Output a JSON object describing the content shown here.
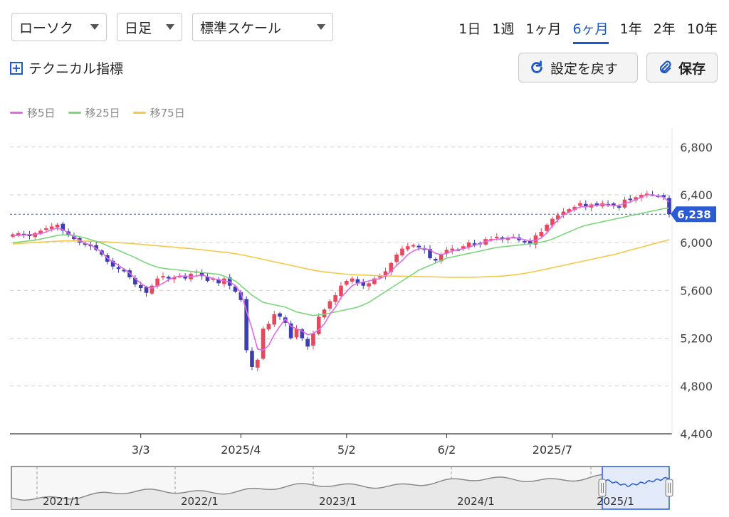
{
  "controls": {
    "chart_type": "ローソク",
    "interval": "日足",
    "scale": "標準スケール",
    "periods": [
      {
        "label": "1日",
        "active": false
      },
      {
        "label": "1週",
        "active": false
      },
      {
        "label": "1ヶ月",
        "active": false
      },
      {
        "label": "6ヶ月",
        "active": true
      },
      {
        "label": "1年",
        "active": false
      },
      {
        "label": "2年",
        "active": false
      },
      {
        "label": "10年",
        "active": false
      }
    ],
    "technical": "テクニカル指標",
    "reset": "設定を戻す",
    "save": "保存"
  },
  "colors": {
    "up": "#e8485b",
    "down": "#3d3db4",
    "ma5": "#e06ae6",
    "ma25": "#7bd67b",
    "ma75": "#f5c84a",
    "accent": "#1f56c8",
    "price_tag": "#2a5bd7"
  },
  "icons": {
    "technical": "plus-square-icon",
    "reset": "refresh-icon",
    "save": "paperclip-icon"
  },
  "chart_data": {
    "type": "candlestick",
    "y_ticks": [
      4400,
      4800,
      5200,
      5600,
      6000,
      6400,
      6800
    ],
    "y_tick_labels": [
      "4,400",
      "4,800",
      "5,200",
      "5,600",
      "6,000",
      "6,400",
      "6,800"
    ],
    "ylim": [
      4400,
      6900
    ],
    "grid": true,
    "x_labels": [
      {
        "label": "3/3",
        "index": 23
      },
      {
        "label": "2025/4",
        "index": 41
      },
      {
        "label": "5/2",
        "index": 60
      },
      {
        "label": "6/2",
        "index": 78
      },
      {
        "label": "2025/7",
        "index": 97
      }
    ],
    "current_price": 6238,
    "current_price_label": "6,238",
    "legend": [
      {
        "label": "移5日",
        "color": "#e06ae6"
      },
      {
        "label": "移25日",
        "color": "#7bd67b"
      },
      {
        "label": "移75日",
        "color": "#f5c84a"
      }
    ],
    "close": [
      6070,
      6080,
      6060,
      6055,
      6080,
      6100,
      6120,
      6135,
      6150,
      6100,
      6060,
      6030,
      6000,
      5990,
      5970,
      5940,
      5900,
      5840,
      5800,
      5780,
      5760,
      5710,
      5650,
      5620,
      5580,
      5640,
      5700,
      5720,
      5700,
      5710,
      5720,
      5700,
      5740,
      5760,
      5720,
      5680,
      5700,
      5660,
      5700,
      5640,
      5590,
      5520,
      5100,
      4960,
      5020,
      5280,
      5320,
      5400,
      5380,
      5330,
      5200,
      5280,
      5200,
      5130,
      5240,
      5380,
      5440,
      5510,
      5560,
      5640,
      5680,
      5700,
      5660,
      5640,
      5660,
      5700,
      5720,
      5760,
      5830,
      5900,
      5950,
      5970,
      5980,
      5960,
      5940,
      5870,
      5850,
      5900,
      5940,
      5950,
      5940,
      5970,
      6000,
      5990,
      5990,
      6030,
      6030,
      6050,
      6030,
      6040,
      6050,
      6020,
      6010,
      5990,
      6060,
      6090,
      6150,
      6200,
      6230,
      6260,
      6280,
      6300,
      6330,
      6300,
      6320,
      6310,
      6330,
      6320,
      6310,
      6300,
      6360,
      6360,
      6380,
      6400,
      6410,
      6400,
      6390,
      6380,
      6238
    ],
    "ma5": [
      6060,
      6060,
      6065,
      6068,
      6070,
      6075,
      6090,
      6110,
      6120,
      6110,
      6080,
      6050,
      6020,
      5995,
      5980,
      5950,
      5920,
      5870,
      5840,
      5810,
      5780,
      5745,
      5700,
      5660,
      5630,
      5620,
      5640,
      5660,
      5690,
      5710,
      5720,
      5720,
      5715,
      5720,
      5730,
      5715,
      5700,
      5690,
      5680,
      5670,
      5640,
      5580,
      5430,
      5280,
      5110,
      5100,
      5140,
      5230,
      5300,
      5360,
      5300,
      5280,
      5260,
      5230,
      5240,
      5270,
      5320,
      5400,
      5460,
      5540,
      5590,
      5640,
      5660,
      5670,
      5680,
      5690,
      5700,
      5720,
      5760,
      5810,
      5850,
      5900,
      5930,
      5950,
      5950,
      5940,
      5910,
      5900,
      5910,
      5930,
      5940,
      5950,
      5960,
      5980,
      5990,
      6010,
      6020,
      6030,
      6030,
      6040,
      6040,
      6035,
      6025,
      6015,
      6020,
      6040,
      6080,
      6140,
      6190,
      6230,
      6255,
      6280,
      6300,
      6300,
      6310,
      6310,
      6320,
      6315,
      6310,
      6310,
      6330,
      6340,
      6360,
      6380,
      6400,
      6400,
      6390,
      6380,
      6340
    ],
    "ma25": [
      6000,
      6005,
      6010,
      6015,
      6020,
      6030,
      6040,
      6050,
      6060,
      6065,
      6065,
      6060,
      6050,
      6040,
      6025,
      6010,
      5995,
      5975,
      5955,
      5935,
      5915,
      5895,
      5875,
      5850,
      5830,
      5810,
      5795,
      5785,
      5780,
      5775,
      5770,
      5765,
      5760,
      5755,
      5750,
      5745,
      5740,
      5735,
      5720,
      5700,
      5680,
      5640,
      5600,
      5560,
      5530,
      5500,
      5490,
      5480,
      5470,
      5460,
      5440,
      5420,
      5410,
      5400,
      5390,
      5395,
      5400,
      5410,
      5420,
      5430,
      5440,
      5450,
      5460,
      5480,
      5500,
      5530,
      5560,
      5590,
      5620,
      5650,
      5680,
      5710,
      5740,
      5770,
      5790,
      5810,
      5830,
      5850,
      5870,
      5880,
      5890,
      5900,
      5910,
      5920,
      5930,
      5940,
      5950,
      5960,
      5965,
      5970,
      5975,
      5980,
      5985,
      5990,
      5995,
      6005,
      6015,
      6030,
      6050,
      6070,
      6090,
      6110,
      6130,
      6145,
      6155,
      6165,
      6175,
      6185,
      6195,
      6205,
      6215,
      6225,
      6235,
      6245,
      6255,
      6265,
      6275,
      6285,
      6290
    ],
    "ma75": [
      5990,
      5993,
      5996,
      5999,
      6002,
      6005,
      6008,
      6010,
      6012,
      6014,
      6015,
      6015,
      6014,
      6013,
      6012,
      6010,
      6008,
      6006,
      6003,
      6000,
      5997,
      5994,
      5990,
      5986,
      5982,
      5978,
      5974,
      5970,
      5966,
      5962,
      5958,
      5954,
      5950,
      5945,
      5940,
      5935,
      5930,
      5925,
      5920,
      5914,
      5908,
      5900,
      5890,
      5880,
      5870,
      5860,
      5850,
      5840,
      5830,
      5820,
      5810,
      5800,
      5790,
      5780,
      5770,
      5762,
      5755,
      5750,
      5745,
      5740,
      5736,
      5733,
      5731,
      5729,
      5727,
      5725,
      5723,
      5722,
      5721,
      5720,
      5719,
      5718,
      5717,
      5716,
      5715,
      5714,
      5713,
      5712,
      5711,
      5710,
      5710,
      5710,
      5710,
      5711,
      5712,
      5714,
      5716,
      5718,
      5721,
      5725,
      5730,
      5736,
      5743,
      5751,
      5760,
      5770,
      5780,
      5790,
      5800,
      5810,
      5820,
      5830,
      5840,
      5850,
      5860,
      5870,
      5880,
      5890,
      5900,
      5912,
      5925,
      5938,
      5950,
      5962,
      5975,
      5988,
      6000,
      6012,
      6025
    ]
  },
  "navigator": {
    "labels": [
      "2021/1",
      "2022/1",
      "2023/1",
      "2024/1",
      "2025/1"
    ]
  }
}
